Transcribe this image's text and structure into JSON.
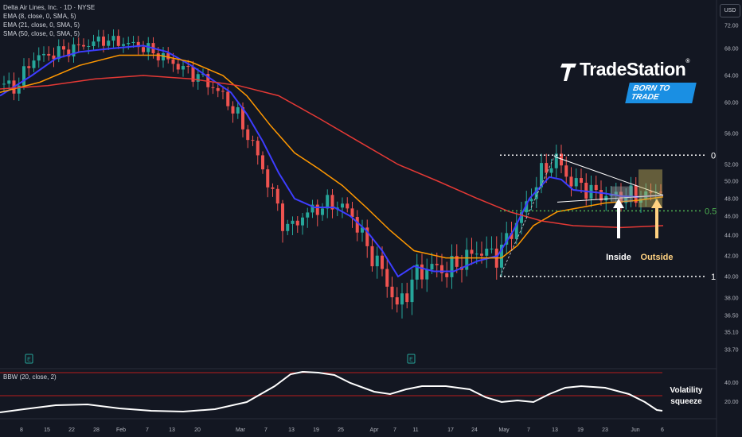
{
  "header": {
    "title": "Delta Air Lines, Inc. · 1D · NYSE",
    "indicators": [
      "EMA (8, close, 0, SMA, 5)",
      "EMA (21, close, 0, SMA, 5)",
      "SMA (50, close, 0, SMA, 5)"
    ],
    "currency": "USD"
  },
  "logo": {
    "name": "TradeStation",
    "tagline": "BORN TO TRADE"
  },
  "colors": {
    "background": "#131722",
    "up": "#26a69a",
    "down": "#ef5350",
    "ema8": "#3d3dff",
    "ema21": "#ff9800",
    "sma50": "#e53935",
    "bbw": "#ffffff",
    "inside_arrow": "#ffffff",
    "outside_arrow": "#ffd180",
    "fib_level": "#4caf50"
  },
  "chart_data": {
    "type": "candlestick",
    "title": "Delta Air Lines, Inc. · 1D · NYSE",
    "y_axis_ticks": [
      "72.00",
      "68.00",
      "64.00",
      "60.00",
      "56.00",
      "52.00",
      "50.00",
      "48.00",
      "46.00",
      "44.00",
      "42.00",
      "40.00",
      "38.00",
      "36.50",
      "35.10",
      "33.70"
    ],
    "x_axis_ticks": [
      "8",
      "15",
      "22",
      "28",
      "Feb",
      "7",
      "13",
      "20",
      "Mar",
      "7",
      "13",
      "19",
      "25",
      "Apr",
      "7",
      "11",
      "17",
      "24",
      "May",
      "7",
      "13",
      "19",
      "23",
      "Jun",
      "6"
    ],
    "series": [
      {
        "name": "EMA (8, close, 0, SMA, 5)",
        "kind": "line"
      },
      {
        "name": "EMA (21, close, 0, SMA, 5)",
        "kind": "line"
      },
      {
        "name": "SMA (50, close, 0, SMA, 5)",
        "kind": "line"
      }
    ],
    "fib_levels": [
      {
        "label": "0",
        "value": 53.2
      },
      {
        "label": "0.5",
        "value": 46.6
      },
      {
        "label": "1",
        "value": 40.0
      }
    ],
    "annotations": [
      {
        "label": "Inside"
      },
      {
        "label": "Outside"
      }
    ],
    "earnings_markers": [
      "E",
      "E"
    ],
    "lower_pane": {
      "name": "BBW (20, close, 2)",
      "ticks": [
        "40.00",
        "20.00"
      ],
      "annotation": "Volatility\nsqueeze"
    }
  }
}
